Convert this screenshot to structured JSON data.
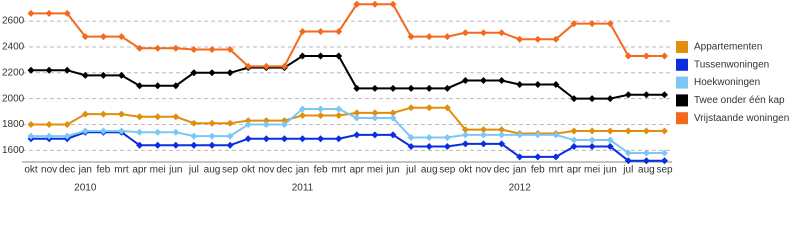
{
  "chart_data": {
    "type": "line",
    "categories": [
      "okt",
      "nov",
      "dec",
      "jan",
      "feb",
      "mrt",
      "apr",
      "mei",
      "jun",
      "jul",
      "aug",
      "sep",
      "okt",
      "nov",
      "dec",
      "jan",
      "feb",
      "mrt",
      "apr",
      "mei",
      "jun",
      "jul",
      "aug",
      "sep",
      "okt",
      "nov",
      "dec",
      "jan",
      "feb",
      "mrt",
      "apr",
      "mei",
      "jun",
      "jul",
      "aug",
      "sep"
    ],
    "x_group_labels": [
      "2010",
      "2011",
      "2012"
    ],
    "ylim": [
      1510,
      2740
    ],
    "yticks": [
      1600,
      1800,
      2000,
      2200,
      2400,
      2600
    ],
    "grid": true,
    "legend": "right",
    "series": [
      {
        "name": "Appartementen",
        "color": "#e08e0b",
        "values": [
          1800,
          1800,
          1800,
          1880,
          1880,
          1880,
          1860,
          1860,
          1860,
          1810,
          1810,
          1810,
          1830,
          1830,
          1830,
          1870,
          1870,
          1870,
          1890,
          1890,
          1890,
          1930,
          1930,
          1930,
          1760,
          1760,
          1760,
          1730,
          1730,
          1730,
          1750,
          1750,
          1750,
          1750,
          1750,
          1750
        ]
      },
      {
        "name": "Tussenwoningen",
        "color": "#0a2ee0",
        "values": [
          1690,
          1690,
          1690,
          1740,
          1740,
          1740,
          1640,
          1640,
          1640,
          1640,
          1640,
          1640,
          1690,
          1690,
          1690,
          1690,
          1690,
          1690,
          1720,
          1720,
          1720,
          1630,
          1630,
          1630,
          1650,
          1650,
          1650,
          1550,
          1550,
          1550,
          1630,
          1630,
          1630,
          1520,
          1520,
          1520
        ]
      },
      {
        "name": "Hoekwoningen",
        "color": "#7cc8f5",
        "values": [
          1710,
          1710,
          1710,
          1750,
          1750,
          1750,
          1740,
          1740,
          1740,
          1710,
          1710,
          1710,
          1800,
          1800,
          1800,
          1920,
          1920,
          1920,
          1850,
          1850,
          1850,
          1700,
          1700,
          1700,
          1720,
          1720,
          1720,
          1720,
          1720,
          1720,
          1680,
          1680,
          1680,
          1580,
          1580,
          1580
        ]
      },
      {
        "name": "Twee onder één kap",
        "color": "#000000",
        "values": [
          2220,
          2220,
          2220,
          2180,
          2180,
          2180,
          2100,
          2100,
          2100,
          2200,
          2200,
          2200,
          2240,
          2240,
          2240,
          2330,
          2330,
          2330,
          2080,
          2080,
          2080,
          2080,
          2080,
          2080,
          2140,
          2140,
          2140,
          2110,
          2110,
          2110,
          2000,
          2000,
          2000,
          2030,
          2030,
          2030
        ]
      },
      {
        "name": "Vrijstaande woningen",
        "color": "#f36a1d",
        "values": [
          2660,
          2660,
          2660,
          2480,
          2480,
          2480,
          2390,
          2390,
          2390,
          2380,
          2380,
          2380,
          2250,
          2250,
          2250,
          2520,
          2520,
          2520,
          2730,
          2730,
          2730,
          2480,
          2480,
          2480,
          2510,
          2510,
          2510,
          2460,
          2460,
          2460,
          2580,
          2580,
          2580,
          2330,
          2330,
          2330
        ]
      }
    ]
  }
}
